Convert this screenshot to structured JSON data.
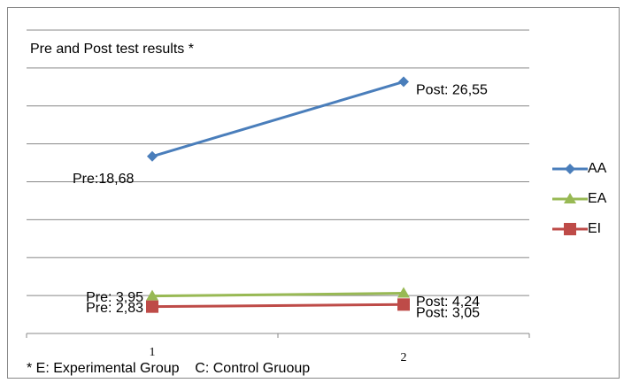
{
  "chart_data": {
    "type": "line",
    "title": "Pre and Post test results *",
    "footnote": "* E: Experimental Group    C: Control Gruoup",
    "categories": [
      "1",
      "2"
    ],
    "series": [
      {
        "name": "AA",
        "color": "#4a7ebb",
        "marker": "diamond",
        "values": [
          18.68,
          26.55
        ],
        "value_labels": [
          "Pre:18,68",
          "Post: 26,55"
        ]
      },
      {
        "name": "EA",
        "color": "#98b954",
        "marker": "triangle",
        "values": [
          3.95,
          4.24
        ],
        "value_labels": [
          "Pre: 3,95",
          "Post: 4,24"
        ]
      },
      {
        "name": "EI",
        "color": "#be4b48",
        "marker": "square",
        "values": [
          2.83,
          3.05
        ],
        "value_labels": [
          "Pre: 2,83",
          "Post: 3,05"
        ]
      }
    ],
    "ylim": [
      0,
      32
    ],
    "yticks": [
      0,
      4,
      8,
      12,
      16,
      20,
      24,
      28,
      32
    ],
    "grid": true,
    "legend": "right"
  }
}
